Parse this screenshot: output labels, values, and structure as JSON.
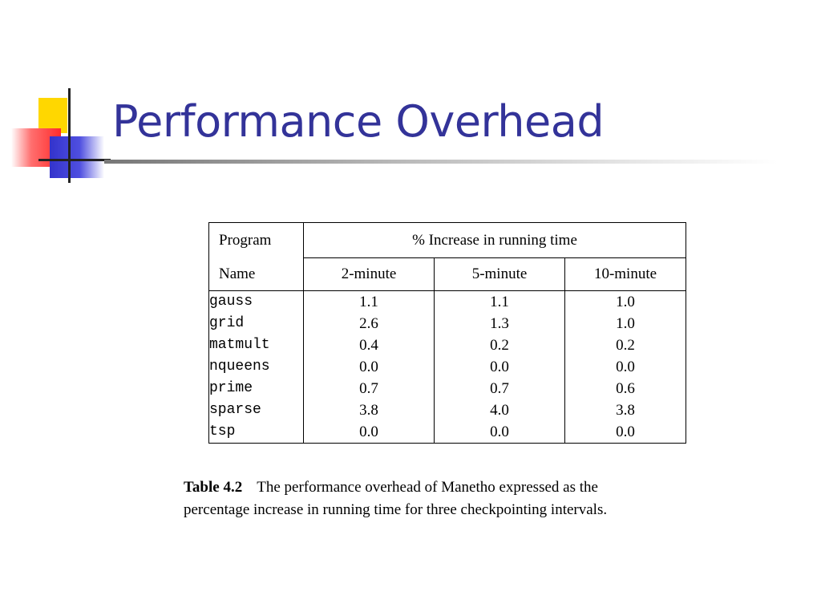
{
  "slide": {
    "title": "Performance Overhead"
  },
  "table": {
    "header_row1": {
      "program": "Program",
      "group": "% Increase in running time"
    },
    "header_row2": {
      "name": "Name",
      "cols": [
        "2-minute",
        "5-minute",
        "10-minute"
      ]
    },
    "rows": [
      {
        "name": "gauss",
        "v2": "1.1",
        "v5": "1.1",
        "v10": "1.0"
      },
      {
        "name": "grid",
        "v2": "2.6",
        "v5": "1.3",
        "v10": "1.0"
      },
      {
        "name": "matmult",
        "v2": "0.4",
        "v5": "0.2",
        "v10": "0.2"
      },
      {
        "name": "nqueens",
        "v2": "0.0",
        "v5": "0.0",
        "v10": "0.0"
      },
      {
        "name": "prime",
        "v2": "0.7",
        "v5": "0.7",
        "v10": "0.6"
      },
      {
        "name": "sparse",
        "v2": "3.8",
        "v5": "4.0",
        "v10": "3.8"
      },
      {
        "name": "tsp",
        "v2": "0.0",
        "v5": "0.0",
        "v10": "0.0"
      }
    ]
  },
  "caption": {
    "label": "Table 4.2",
    "line1": "The performance overhead of Manetho expressed as the",
    "line2": "percentage increase in running time for three checkpointing intervals."
  },
  "colors": {
    "title": "#333399",
    "logo_yellow": "#ffd700",
    "logo_red": "#ff2b2b",
    "logo_blue": "#3333cc"
  }
}
